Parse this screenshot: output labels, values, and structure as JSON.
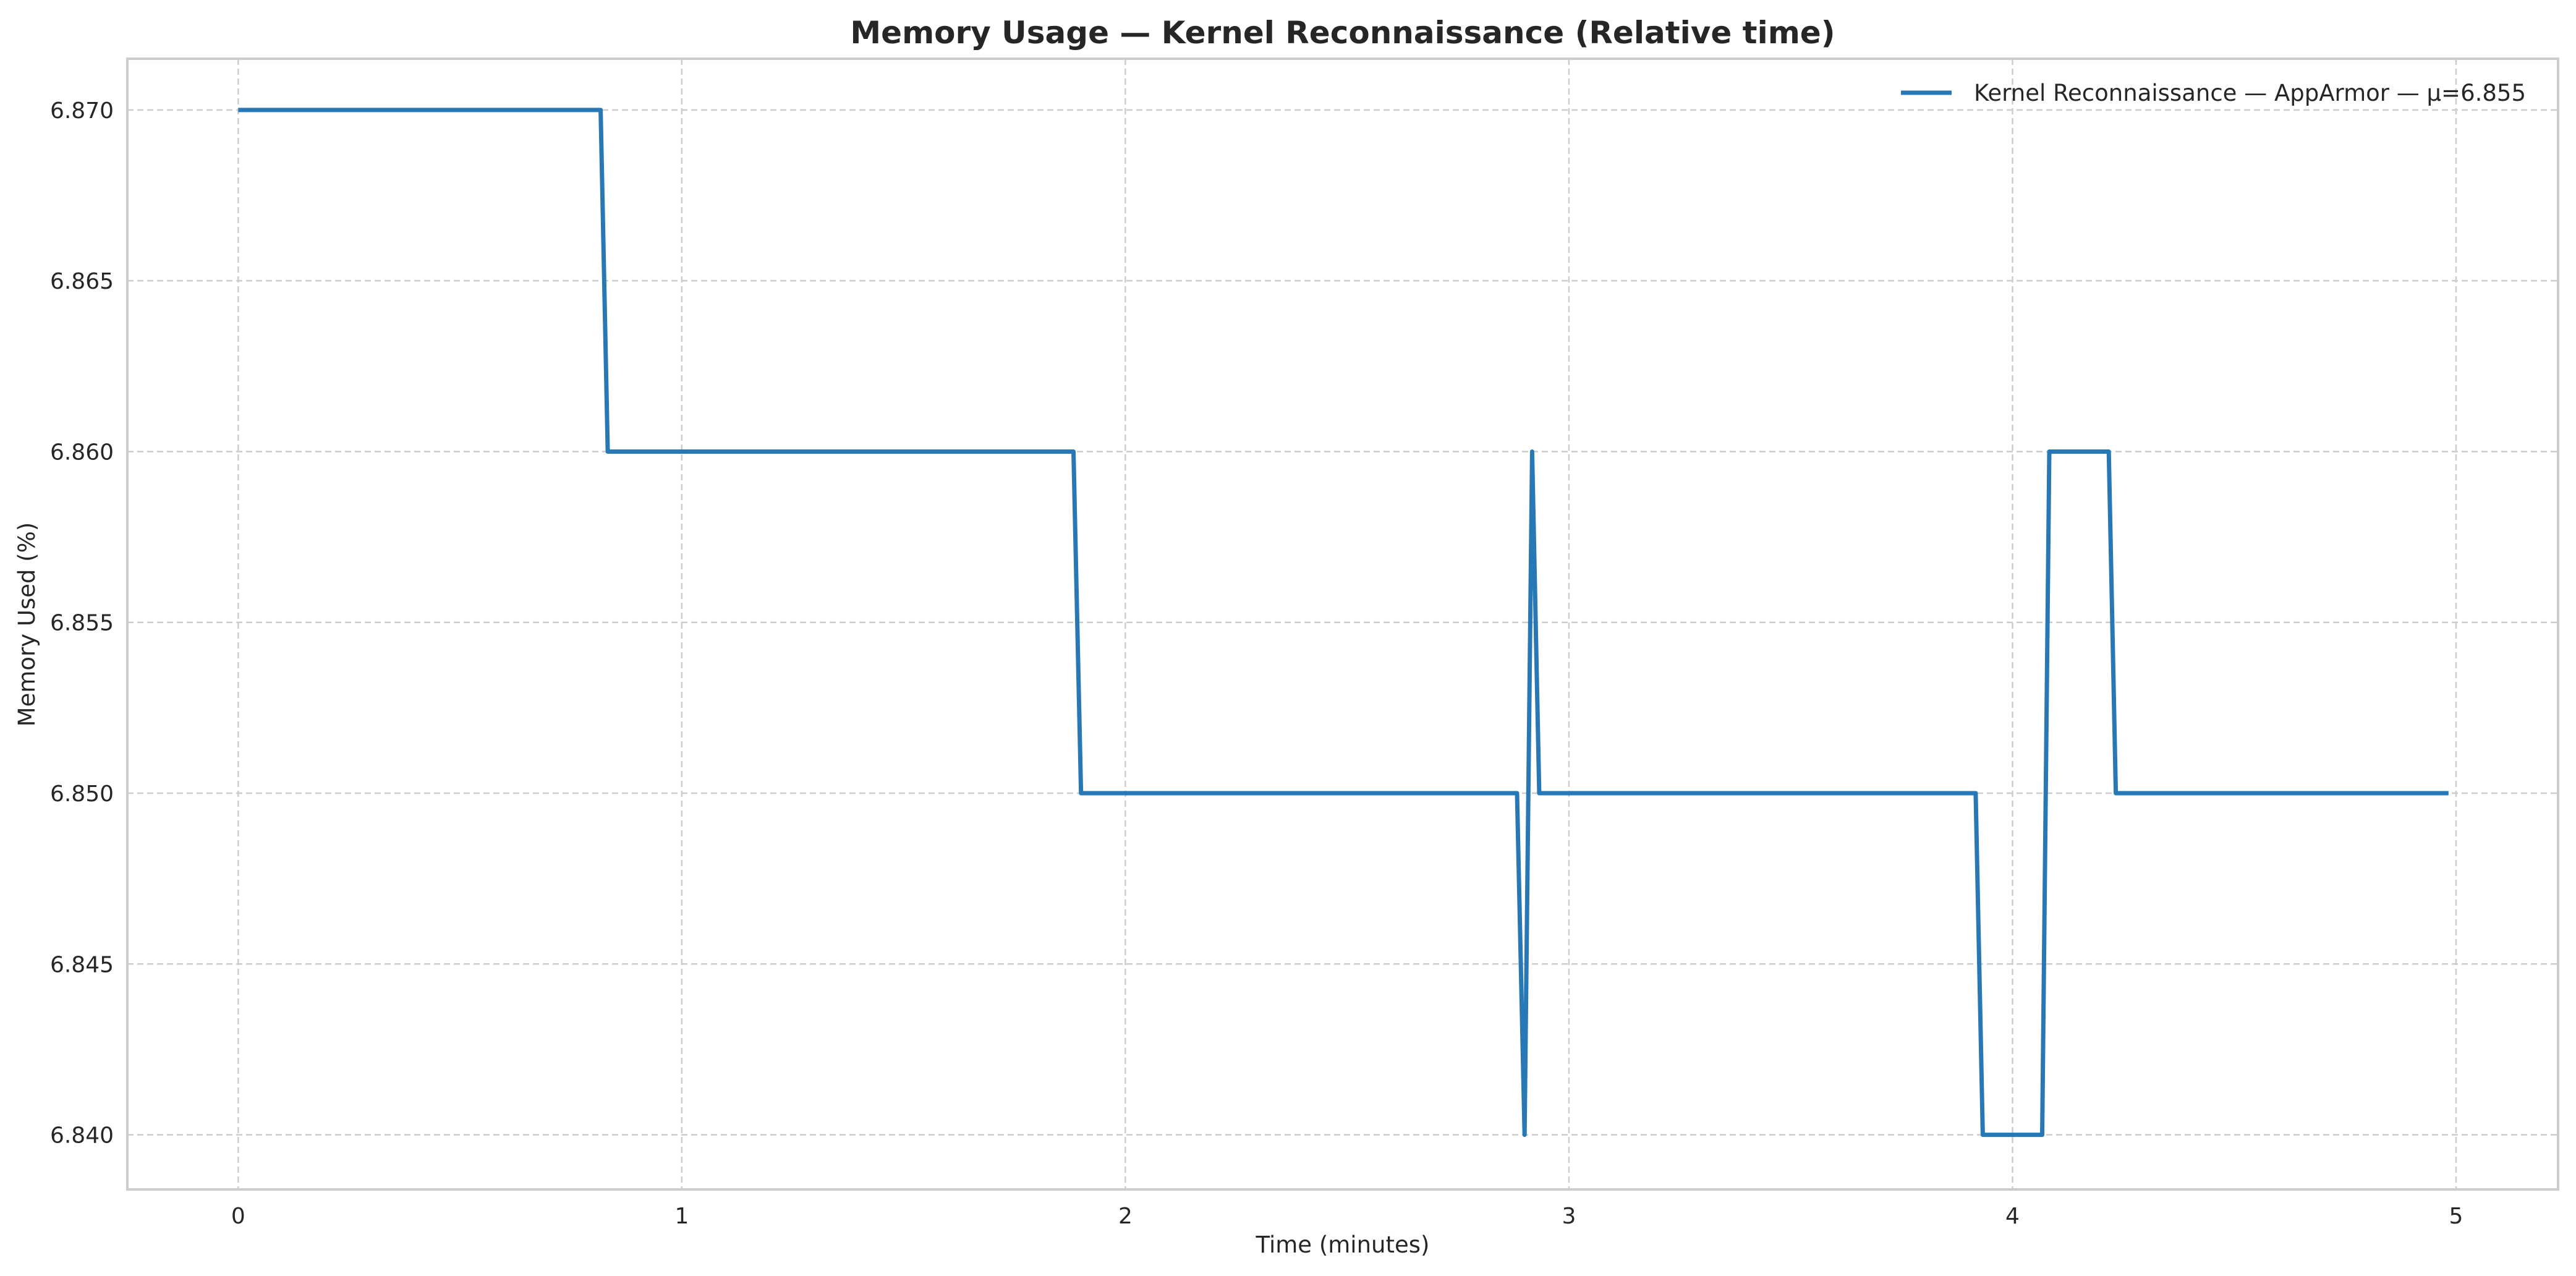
{
  "chart_data": {
    "type": "line",
    "title": "Memory Usage — Kernel Reconnaissance (Relative time)",
    "xlabel": "Time (minutes)",
    "ylabel": "Memory Used (%)",
    "xlim": [
      -0.25,
      5.23
    ],
    "ylim": [
      6.8384,
      6.8715
    ],
    "x_ticks": [
      0,
      1,
      2,
      3,
      4,
      5
    ],
    "x_tick_labels": [
      "0",
      "1",
      "2",
      "3",
      "4",
      "5"
    ],
    "y_ticks": [
      6.84,
      6.845,
      6.85,
      6.855,
      6.86,
      6.865,
      6.87
    ],
    "y_tick_labels": [
      "6.840",
      "6.845",
      "6.850",
      "6.855",
      "6.860",
      "6.865",
      "6.870"
    ],
    "grid": true,
    "legend_position": "top-right",
    "colors": {
      "series": "#2878b5",
      "grid": "#cccccc",
      "frame": "#cccccc",
      "text": "#262626"
    },
    "series": [
      {
        "name": "Kernel Reconnaissance — AppArmor — μ=6.855",
        "x": [
          0,
          0.817,
          0.833,
          1.883,
          1.9,
          2.883,
          2.9,
          2.917,
          2.933,
          3.917,
          3.933,
          4.067,
          4.083,
          4.217,
          4.233,
          4.983
        ],
        "y": [
          6.87,
          6.87,
          6.86,
          6.86,
          6.85,
          6.85,
          6.84,
          6.86,
          6.85,
          6.85,
          6.84,
          6.84,
          6.86,
          6.86,
          6.85,
          6.85
        ]
      }
    ]
  }
}
